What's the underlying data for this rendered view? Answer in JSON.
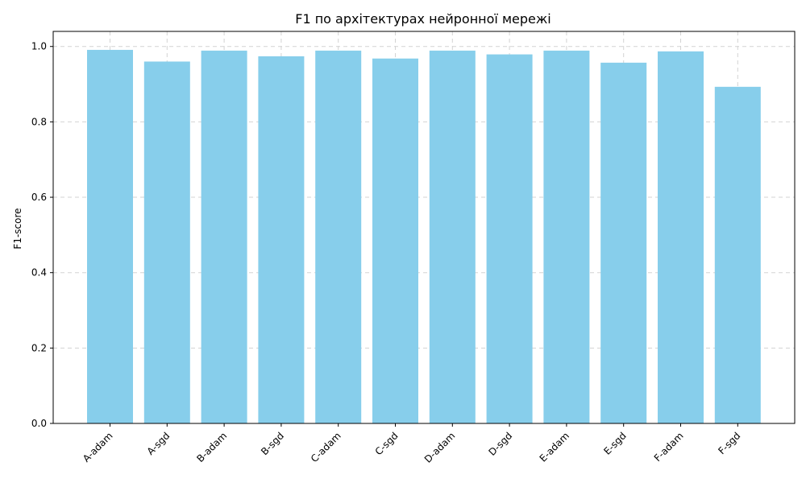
{
  "chart_data": {
    "type": "bar",
    "title": "F1 по архітектурах нейронної мережі",
    "xlabel": "",
    "ylabel": "F1-score",
    "categories": [
      "A-adam",
      "A-sgd",
      "B-adam",
      "B-sgd",
      "C-adam",
      "C-sgd",
      "D-adam",
      "D-sgd",
      "E-adam",
      "E-sgd",
      "F-adam",
      "F-sgd"
    ],
    "values": [
      0.991,
      0.96,
      0.989,
      0.974,
      0.989,
      0.968,
      0.989,
      0.979,
      0.989,
      0.957,
      0.987,
      0.893
    ],
    "ylim": [
      0,
      1.04
    ],
    "yticks": [
      "0.0",
      "0.2",
      "0.4",
      "0.6",
      "0.8",
      "1.0"
    ],
    "grid": true,
    "bar_color": "#87ceeb"
  }
}
